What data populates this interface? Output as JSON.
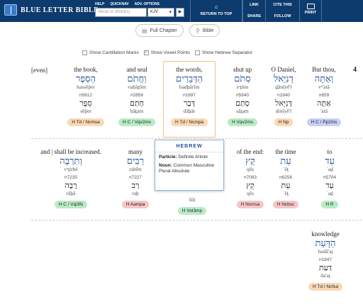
{
  "header": {
    "logo_text": "BLUE LETTER BIBLE",
    "nav": [
      "HELP",
      "QUICKNAV",
      "ADV. OPTIONS"
    ],
    "search_placeholder": "Verse or Word(s)",
    "version": "KJV",
    "go": "▶",
    "return_top": "RETURN TO TOP",
    "link": "LINK",
    "share": "SHARE",
    "cite_this": "CITE THIS",
    "follow": "FOLLOW",
    "print": "PRINT"
  },
  "toolbar": {
    "full_chapter": "Full Chapter",
    "bible": "Bible"
  },
  "options": {
    "cantillation": "Show Cantillation Marks",
    "vowel_points": "Show Vowel Points",
    "hebrew_separator": "Show Hebrew Separator"
  },
  "verse_number": "4",
  "row1": [
    {
      "eng": "[even]",
      "heb": "",
      "tr": "",
      "strongs": "",
      "heb2": "",
      "tr2": "",
      "badge": ""
    },
    {
      "eng": "the book,",
      "heb": "הַסֵּפֶר",
      "tr": "hassēp̄er",
      "strongs": "5612",
      "heb2": "סֵפֶר",
      "tr2": "sēp̄er",
      "badge": "H Td / Ncmsa"
    },
    {
      "eng": "and seal",
      "heb": "וַחֲתֹם",
      "tr": "vaḥăṯōm",
      "strongs": "2856",
      "heb2": "חָתַם",
      "tr2": "ḥāṯam",
      "badge": "H C / Vqv2ms"
    },
    {
      "eng": "the words,",
      "heb": "הַדְּבָרִים",
      "tr": "hadḇārîm",
      "strongs": "1697",
      "heb2": "דָּבָר",
      "tr2": "dāḇār",
      "badge": "H Td / Ncmpa"
    },
    {
      "eng": "shut up",
      "heb": "סְתֹם",
      "tr": "sᵊṯōm",
      "strongs": "5640",
      "heb2": "סָתַם",
      "tr2": "sāṯam",
      "badge": "H Vqv2ms"
    },
    {
      "eng": "O Daniel,",
      "heb": "דָנִיֵּאל",
      "tr": "ḏānîyē'l",
      "strongs": "1840",
      "heb2": "דָּנִיֵּאל",
      "tr2": "dinîyē'l",
      "badge": "H Np"
    },
    {
      "eng": "But thou,",
      "heb": "וְאַתָּה",
      "tr": "vᵊ'atâ",
      "strongs": "859",
      "heb2": "אַתָּה",
      "tr2": "'atâ",
      "badge": "H C / Pp2ms"
    }
  ],
  "row2": [
    {
      "eng": "and | shall be increased.",
      "heb": "וְתִרְבֶּה",
      "tr": "vᵊṯirbê",
      "strongs": "7235",
      "heb2": "רָבָה",
      "tr2": "rāḇâ",
      "badge": "H C / Vqi3fs"
    },
    {
      "eng": "many",
      "heb": "רַבִּים",
      "tr": "rabîm",
      "strongs": "7227",
      "heb2": "רַב",
      "tr2": "raḇ",
      "badge": "H Aampa"
    },
    {
      "eng": "",
      "heb": "",
      "tr": "",
      "strongs": "",
      "heb2": "",
      "tr2": "šûṭ",
      "badge": "H Vol3mp"
    },
    {
      "eng": "of the end:",
      "heb": "קֵץ",
      "tr": "qēṣ",
      "strongs": "7093",
      "heb2": "קֵץ",
      "tr2": "qēṣ",
      "badge": "H Ncmsa"
    },
    {
      "eng": "the time",
      "heb": "עֵת",
      "tr": "ʿēṯ",
      "strongs": "6256",
      "heb2": "עֵת",
      "tr2": "ʿēṯ",
      "badge": "H Ncbsc"
    },
    {
      "eng": "to",
      "heb": "עַד",
      "tr": "ʿaḏ",
      "strongs": "5704",
      "heb2": "עַד",
      "tr2": "ʿaḏ",
      "badge": "H R"
    }
  ],
  "row3": [
    {
      "eng": "knowledge",
      "heb": "הַדָּעַת",
      "tr": "hadā'aṯ",
      "strongs": "1847",
      "heb2": "דַּעַת",
      "tr2": "da'aṯ",
      "badge": "H Td / Ncfsa"
    }
  ],
  "popup": {
    "title": "HEBREW",
    "line1_label": "Particle:",
    "line1_value": "Definite Article",
    "line2_label": "Noun:",
    "line2_value": "Common Masculine Plural Absolute"
  }
}
